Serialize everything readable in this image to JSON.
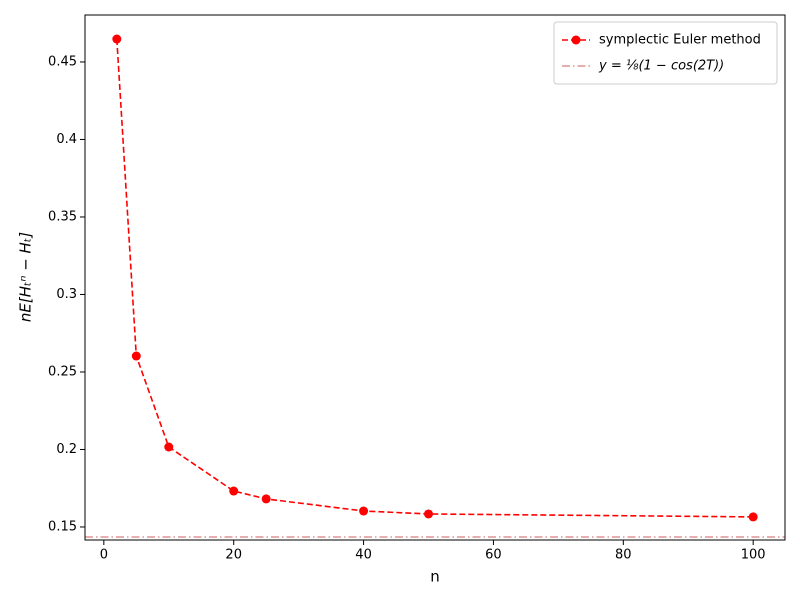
{
  "chart_data": {
    "type": "line",
    "xlabel": "n",
    "ylabel": "nE[Hₜⁿ − Hₜ]",
    "x": [
      2,
      5,
      10,
      20,
      25,
      40,
      50,
      100
    ],
    "series": [
      {
        "name": "symplectic Euler method",
        "color": "#ff0000",
        "linestyle": "dashed",
        "marker": "circle",
        "values": [
          0.4648,
          0.2603,
          0.2016,
          0.1732,
          0.1681,
          0.1603,
          0.1584,
          0.1565
        ]
      }
    ],
    "hlines": [
      {
        "name": "y = ⅛(1 − cos(2T))",
        "color": "#cd5c5c",
        "linestyle": "dashdot",
        "value": 0.1435
      }
    ],
    "xlim": [
      -2.9,
      104.9
    ],
    "ylim": [
      0.1416,
      0.4803
    ],
    "xticks": [
      0,
      20,
      40,
      60,
      80,
      100
    ],
    "yticks": [
      0.15,
      0.2,
      0.25,
      0.3,
      0.35,
      0.4,
      0.45
    ],
    "legend": "upper-right"
  }
}
